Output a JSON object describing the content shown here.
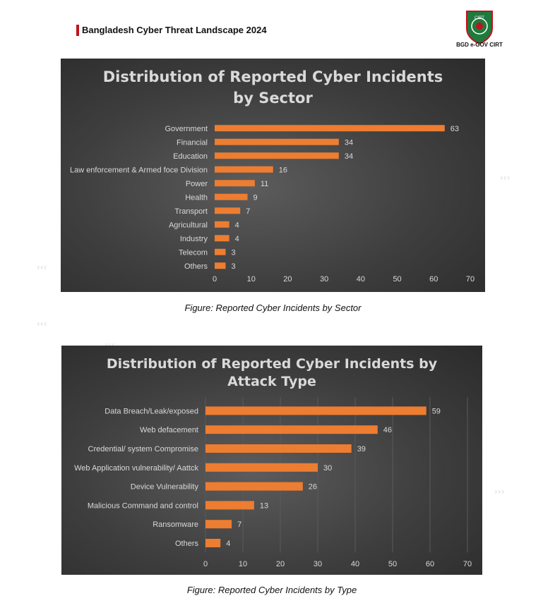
{
  "header": {
    "title": "Bangladesh Cyber Threat Landscape 2024"
  },
  "logo": {
    "caption": "BGD e-GOV CIRT",
    "emblem_text": "CIRT"
  },
  "figures": [
    {
      "caption": "Figure: Reported Cyber Incidents by Sector"
    },
    {
      "caption": "Figure: Reported Cyber Incidents by Type"
    }
  ],
  "colors": {
    "bar": "#ed7d31",
    "panel": "#404040",
    "text_light": "#d9d9d9",
    "header_accent": "#c0141c",
    "logo_green": "#1f7a3d"
  },
  "chart_data": [
    {
      "type": "bar",
      "orientation": "horizontal",
      "title_lines": [
        "Distribution of Reported Cyber Incidents",
        "by Sector"
      ],
      "categories": [
        "Government",
        "Financial",
        "Education",
        "Law enforcement & Armed foce Division",
        "Power",
        "Health",
        "Transport",
        "Agricultural",
        "Industry",
        "Telecom",
        "Others"
      ],
      "values": [
        63,
        34,
        34,
        16,
        11,
        9,
        7,
        4,
        4,
        3,
        3
      ],
      "xlim": [
        0,
        70
      ],
      "xticks": [
        0,
        10,
        20,
        30,
        40,
        50,
        60,
        70
      ],
      "data_labels": true,
      "grid": false
    },
    {
      "type": "bar",
      "orientation": "horizontal",
      "title_lines": [
        "Distribution of Reported Cyber Incidents by",
        "Attack Type"
      ],
      "categories": [
        "Data Breach/Leak/exposed",
        "Web defacement",
        "Credential/ system  Compromise",
        "Web Application vulnerability/ Aattck",
        "Device Vulnerability",
        "Malicious Command and control",
        "Ransomware",
        "Others"
      ],
      "values": [
        59,
        46,
        39,
        30,
        26,
        13,
        7,
        4
      ],
      "xlim": [
        0,
        70
      ],
      "xticks": [
        0,
        10,
        20,
        30,
        40,
        50,
        60,
        70
      ],
      "data_labels": true,
      "grid": true
    }
  ]
}
